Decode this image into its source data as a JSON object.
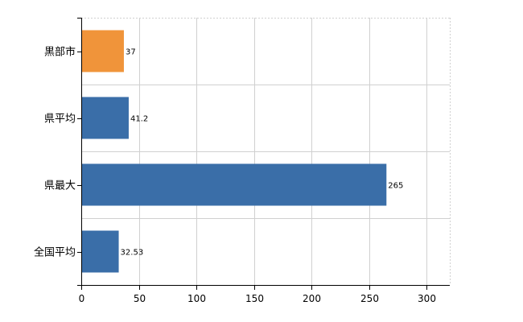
{
  "chart_data": {
    "type": "bar",
    "orientation": "horizontal",
    "categories": [
      "黒部市",
      "県平均",
      "県最大",
      "全国平均"
    ],
    "values": [
      37,
      41.2,
      265,
      32.53
    ],
    "value_labels": [
      "37",
      "41.2",
      "265",
      "32.53"
    ],
    "bar_colors": [
      "#f0943a",
      "#3a6ea8",
      "#3a6ea8",
      "#3a6ea8"
    ],
    "xlim": [
      0,
      320
    ],
    "xticks": [
      0,
      50,
      100,
      150,
      200,
      250,
      300
    ],
    "xtick_labels": [
      "0",
      "50",
      "100",
      "150",
      "200",
      "250",
      "300"
    ],
    "grid": true
  }
}
